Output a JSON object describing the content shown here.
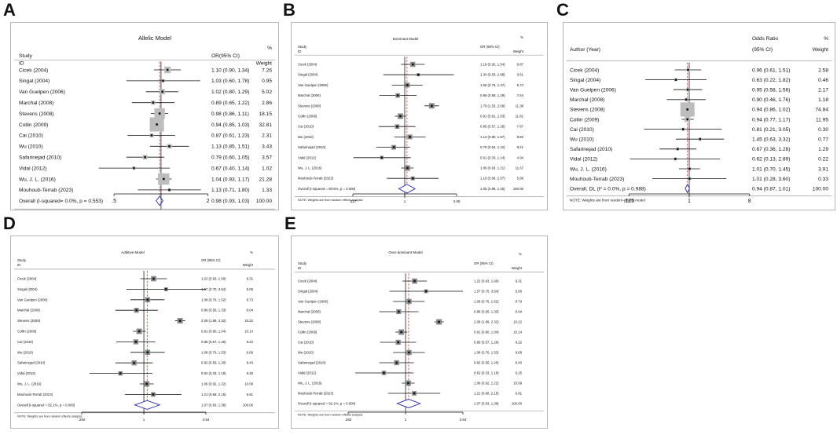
{
  "panels": [
    {
      "letter": "A",
      "chart_data": {
        "type": "forest",
        "model_title": "Allelic Model",
        "header_col1": [
          "Study",
          "ID"
        ],
        "header_col2": "OR(95% CI)",
        "header_col3": [
          "%",
          "Weight"
        ],
        "studies": [
          {
            "name": "Cicek (2004)",
            "or": 1.1,
            "lo": 0.9,
            "hi": 1.34,
            "ci": "1.10 (0.90, 1.34)",
            "weight": 7.26
          },
          {
            "name": "Singal (2004)",
            "or": 1.03,
            "lo": 0.6,
            "hi": 1.78,
            "ci": "1.03 (0.60, 1.78)",
            "weight": 0.95
          },
          {
            "name": "Van Guelpen (2006)",
            "or": 1.02,
            "lo": 0.8,
            "hi": 1.29,
            "ci": "1.02 (0.80, 1.29)",
            "weight": 5.02
          },
          {
            "name": "Marchal (2008)",
            "or": 0.89,
            "lo": 0.65,
            "hi": 1.22,
            "ci": "0.89 (0.65, 1.22)",
            "weight": 2.86
          },
          {
            "name": "Stevens (2008)",
            "or": 0.98,
            "lo": 0.86,
            "hi": 1.11,
            "ci": "0.98 (0.86, 1.11)",
            "weight": 18.15
          },
          {
            "name": "Collin (2009)",
            "or": 0.94,
            "lo": 0.85,
            "hi": 1.03,
            "ci": "0.94 (0.85, 1.03)",
            "weight": 32.81
          },
          {
            "name": "Cai (2010)",
            "or": 0.87,
            "lo": 0.61,
            "hi": 1.23,
            "ci": "0.87 (0.61, 1.23)",
            "weight": 2.31
          },
          {
            "name": "Wu (2010)",
            "or": 1.13,
            "lo": 0.85,
            "hi": 1.51,
            "ci": "1.13 (0.85, 1.51)",
            "weight": 3.43
          },
          {
            "name": "Safarinejad (2010)",
            "or": 0.79,
            "lo": 0.6,
            "hi": 1.05,
            "ci": "0.79 (0.60, 1.05)",
            "weight": 3.57
          },
          {
            "name": "Vidal (2012)",
            "or": 0.67,
            "lo": 0.4,
            "hi": 1.14,
            "ci": "0.67 (0.40, 1.14)",
            "weight": 1.02
          },
          {
            "name": "Wu, J. L. (2016)",
            "or": 1.04,
            "lo": 0.93,
            "hi": 1.17,
            "ci": "1.04 (0.93, 1.17)",
            "weight": 21.28
          },
          {
            "name": "Mouhoub-Terrab (2023)",
            "or": 1.13,
            "lo": 0.71,
            "hi": 1.8,
            "ci": "1.13 (0.71, 1.80)",
            "weight": 1.33
          }
        ],
        "overall": {
          "label": "Overall (I-squared= 0.0%, p = 0.553)",
          "or": 0.98,
          "lo": 0.93,
          "hi": 1.03,
          "ci": "0.98 (0.93, 1.03)",
          "weight": "100.00"
        },
        "note": "NOTE: Weights are from random-effects model",
        "ticks": [
          {
            "v": 0.5,
            "label": ".5"
          },
          {
            "v": 1,
            "label": "1"
          },
          {
            "v": 2,
            "label": "2"
          }
        ],
        "xlim": [
          0.333,
          2.5
        ]
      }
    },
    {
      "letter": "B",
      "chart_data": {
        "type": "forest",
        "model_title": "Dominant Model",
        "header_col1": [
          "Study",
          "ID"
        ],
        "header_col2": "OR (95% CI)",
        "header_col3": [
          "%",
          "Weight"
        ],
        "studies": [
          {
            "name": "Cicek (2004)",
            "or": 1.19,
            "lo": 0.92,
            "hi": 1.54,
            "ci": "1.19 (0.92, 1.54)",
            "weight": 9.87
          },
          {
            "name": "Singal (2004)",
            "or": 1.34,
            "lo": 0.63,
            "hi": 2.88,
            "ci": "1.34 (0.63, 2.88)",
            "weight": 3.61
          },
          {
            "name": "Van Guelpen (2006)",
            "or": 1.06,
            "lo": 0.76,
            "hi": 1.47,
            "ci": "1.06 (0.76, 1.47)",
            "weight": 8.74
          },
          {
            "name": "Marchal (2008)",
            "or": 0.86,
            "lo": 0.58,
            "hi": 1.29,
            "ci": "0.86 (0.58, 1.29)",
            "weight": 7.64
          },
          {
            "name": "Stevens (2008)",
            "or": 1.79,
            "lo": 1.53,
            "hi": 2.09,
            "ci": "1.79 (1.53, 2.09)",
            "weight": 11.38
          },
          {
            "name": "Collin (2009)",
            "or": 0.91,
            "lo": 0.81,
            "hi": 1.03,
            "ci": "0.91 (0.81, 1.03)",
            "weight": 11.81
          },
          {
            "name": "Cai (2010)",
            "or": 0.85,
            "lo": 0.57,
            "hi": 1.26,
            "ci": "0.85 (0.57, 1.26)",
            "weight": 7.67
          },
          {
            "name": "Wu (2010)",
            "or": 1.12,
            "lo": 0.8,
            "hi": 1.57,
            "ci": "1.12 (0.80, 1.57)",
            "weight": 8.6
          },
          {
            "name": "Safarinejad (2010)",
            "or": 0.79,
            "lo": 0.54,
            "hi": 1.12,
            "ci": "0.79 (0.54, 1.12)",
            "weight": 8.21
          },
          {
            "name": "Vidal (2012)",
            "or": 0.61,
            "lo": 0.33,
            "hi": 1.14,
            "ci": "0.61 (0.33, 1.14)",
            "weight": 4.94
          },
          {
            "name": "Wu, J. L. (2016)",
            "or": 1.06,
            "lo": 0.93,
            "hi": 1.21,
            "ci": "1.06 (0.93, 1.21)",
            "weight": 11.67
          },
          {
            "name": "Mouhoub-Terrab (2023)",
            "or": 1.19,
            "lo": 0.68,
            "hi": 2.07,
            "ci": "1.19 (0.68, 2.07)",
            "weight": 5.86
          }
        ],
        "overall": {
          "label": "Overall (I-squared = 80.6%, p = 0.000)",
          "or": 1.05,
          "lo": 0.88,
          "hi": 1.25,
          "ci": "1.05 (0.88, 1.25)",
          "weight": "100.00"
        },
        "note": "NOTE: Weights are from random effects analysis",
        "ticks": [
          {
            "v": 0.327,
            "label": ".327"
          },
          {
            "v": 1,
            "label": "1"
          },
          {
            "v": 3.06,
            "label": "3.06"
          }
        ],
        "xlim": [
          0.327,
          3.06
        ]
      }
    },
    {
      "letter": "C",
      "chart_data": {
        "type": "forest",
        "model_title": "",
        "header_col1": [
          "Author (Year)",
          ""
        ],
        "header_col2_lines": [
          "Odds Ratio",
          "(95% CI)"
        ],
        "header_col3": [
          "%",
          "Weight"
        ],
        "studies": [
          {
            "name": "Cicek (2004)",
            "or": 0.96,
            "lo": 0.61,
            "hi": 1.51,
            "ci": "0.96 (0.61, 1.51)",
            "weight": 2.58
          },
          {
            "name": "Singal (2004)",
            "or": 0.63,
            "lo": 0.22,
            "hi": 1.82,
            "ci": "0.63 (0.22, 1.82)",
            "weight": 0.46
          },
          {
            "name": "Van Guelpen (2006)",
            "or": 0.95,
            "lo": 0.58,
            "hi": 1.56,
            "ci": "0.95 (0.58, 1.56)",
            "weight": 2.17
          },
          {
            "name": "Marchal (2008)",
            "or": 0.9,
            "lo": 0.46,
            "hi": 1.76,
            "ci": "0.90 (0.46, 1.76)",
            "weight": 1.18
          },
          {
            "name": "Stevens (2008)",
            "or": 0.94,
            "lo": 0.86,
            "hi": 1.02,
            "ci": "0.94 (0.86, 1.02)",
            "weight": 74.84
          },
          {
            "name": "Collin (2009)",
            "or": 0.94,
            "lo": 0.77,
            "hi": 1.17,
            "ci": "0.94 (0.77, 1.17)",
            "weight": 11.95
          },
          {
            "name": "Cai (2010)",
            "or": 0.81,
            "lo": 0.21,
            "hi": 3.05,
            "ci": "0.81 (0.21, 3.05)",
            "weight": 0.3
          },
          {
            "name": "Wu (2010)",
            "or": 1.45,
            "lo": 0.63,
            "hi": 3.32,
            "ci": "1.45 (0.63, 3.32)",
            "weight": 0.77
          },
          {
            "name": "Safarinejad (2010)",
            "or": 0.67,
            "lo": 0.36,
            "hi": 1.28,
            "ci": "0.67 (0.36, 1.28)",
            "weight": 1.29
          },
          {
            "name": "Vidal (2012)",
            "or": 0.62,
            "lo": 0.13,
            "hi": 2.89,
            "ci": "0.62 (0.13, 2.89)",
            "weight": 0.22
          },
          {
            "name": "Wu, J. L. (2016)",
            "or": 1.01,
            "lo": 0.7,
            "hi": 1.45,
            "ci": "1.01 (0.70, 1.45)",
            "weight": 3.91
          },
          {
            "name": "Mouhoub-Terrab (2023)",
            "or": 1.01,
            "lo": 0.28,
            "hi": 3.6,
            "ci": "1.01 (0.28, 3.60)",
            "weight": 0.33
          }
        ],
        "overall": {
          "label": "Overall, DL (I² = 0.0%, p = 0.988)",
          "or": 0.94,
          "lo": 0.87,
          "hi": 1.01,
          "ci": "0.94 (0.87, 1.01)",
          "weight": "100.00"
        },
        "note": "NOTE: Weights are from random-effects model",
        "ticks": [
          {
            "v": 0.125,
            "label": ".125"
          },
          {
            "v": 1,
            "label": "1"
          },
          {
            "v": 8,
            "label": "8"
          }
        ],
        "xlim": [
          0.1,
          10
        ]
      }
    },
    {
      "letter": "D",
      "chart_data": {
        "type": "forest",
        "model_title": "Additive Model",
        "header_col1": [
          "Study",
          "ID"
        ],
        "header_col2": "OR (95% CI)",
        "header_col3": [
          "%",
          "Weight"
        ],
        "studies": [
          {
            "name": "Cicek (2004)",
            "or": 1.22,
            "lo": 0.93,
            "hi": 1.6,
            "ci": "1.22 (0.93, 1.60)",
            "weight": 9.31
          },
          {
            "name": "Singal (2004)",
            "or": 1.57,
            "lo": 0.7,
            "hi": 3.54,
            "ci": "1.57 (0.70, 3.54)",
            "weight": 5.06
          },
          {
            "name": "Van Guelpen (2006)",
            "or": 1.08,
            "lo": 0.76,
            "hi": 1.52,
            "ci": "1.08 (0.76, 1.52)",
            "weight": 8.73
          },
          {
            "name": "Marchal (2008)",
            "or": 0.86,
            "lo": 0.56,
            "hi": 1.33,
            "ci": "0.86 (0.56, 1.33)",
            "weight": 8.04
          },
          {
            "name": "Stevens (2008)",
            "or": 2.09,
            "lo": 1.89,
            "hi": 2.32,
            "ci": "2.09 (1.89, 2.32)",
            "weight": 10.22
          },
          {
            "name": "Collin (2009)",
            "or": 0.91,
            "lo": 0.8,
            "hi": 1.04,
            "ci": "0.91 (0.80, 1.04)",
            "weight": 10.14
          },
          {
            "name": "Cai (2010)",
            "or": 0.85,
            "lo": 0.57,
            "hi": 1.26,
            "ci": "0.85 (0.57, 1.26)",
            "weight": 8.22
          },
          {
            "name": "Wu (2010)",
            "or": 1.08,
            "lo": 0.76,
            "hi": 1.53,
            "ci": "1.08 (0.76, 1.53)",
            "weight": 8.69
          },
          {
            "name": "Safarinejad (2010)",
            "or": 0.82,
            "lo": 0.56,
            "hi": 1.2,
            "ci": "0.82 (0.56, 1.20)",
            "weight": 8.43
          },
          {
            "name": "Vidal (2012)",
            "or": 0.62,
            "lo": 0.33,
            "hi": 1.19,
            "ci": "0.62 (0.33, 1.19)",
            "weight": 6.25
          },
          {
            "name": "Wu, J. L. (2016)",
            "or": 1.06,
            "lo": 0.92,
            "hi": 1.22,
            "ci": "1.06 (0.92, 1.22)",
            "weight": 10.09
          },
          {
            "name": "Mouhoub-Terrab (2023)",
            "or": 1.21,
            "lo": 0.68,
            "hi": 2.15,
            "ci": "1.21 (0.68, 2.15)",
            "weight": 6.81
          }
        ],
        "overall": {
          "label": "Overall  (I-squared = 92.1%, p = 0.000)",
          "or": 1.07,
          "lo": 0.83,
          "hi": 1.38,
          "ci": "1.07 (0.83, 1.38)",
          "weight": "100.00"
        },
        "note": "NOTE: Weights are from random effects analysis",
        "ticks": [
          {
            "v": 0.282,
            "label": ".282"
          },
          {
            "v": 1,
            "label": "1"
          },
          {
            "v": 3.54,
            "label": "3.54"
          }
        ],
        "xlim": [
          0.282,
          3.54
        ]
      }
    },
    {
      "letter": "E",
      "chart_data": {
        "type": "forest",
        "model_title": "Over-dominant Model",
        "header_col1": [
          "Study",
          "ID"
        ],
        "header_col2": "OR (95% CI)",
        "header_col3": [
          "%",
          "Weight"
        ],
        "studies": [
          {
            "name": "Cicek (2004)",
            "or": 1.22,
            "lo": 0.93,
            "hi": 1.6,
            "ci": "1.22 (0.93, 1.60)",
            "weight": 9.31
          },
          {
            "name": "Singal (2004)",
            "or": 1.57,
            "lo": 0.7,
            "hi": 3.54,
            "ci": "1.57 (0.70, 3.54)",
            "weight": 5.06
          },
          {
            "name": "Van Guelpen (2006)",
            "or": 1.08,
            "lo": 0.76,
            "hi": 1.52,
            "ci": "1.08 (0.76, 1.52)",
            "weight": 8.73
          },
          {
            "name": "Marchal (2008)",
            "or": 0.86,
            "lo": 0.56,
            "hi": 1.33,
            "ci": "0.86 (0.56, 1.33)",
            "weight": 8.04
          },
          {
            "name": "Stevens (2008)",
            "or": 2.09,
            "lo": 1.89,
            "hi": 2.32,
            "ci": "2.09 (1.89, 2.32)",
            "weight": 10.22
          },
          {
            "name": "Collin (2009)",
            "or": 0.91,
            "lo": 0.8,
            "hi": 1.04,
            "ci": "0.91 (0.80, 1.04)",
            "weight": 10.14
          },
          {
            "name": "Cai (2010)",
            "or": 0.85,
            "lo": 0.57,
            "hi": 1.26,
            "ci": "0.85 (0.57, 1.26)",
            "weight": 8.22
          },
          {
            "name": "Wu (2010)",
            "or": 1.08,
            "lo": 0.76,
            "hi": 1.53,
            "ci": "1.08 (0.76, 1.53)",
            "weight": 8.69
          },
          {
            "name": "Safarinejad (2010)",
            "or": 0.82,
            "lo": 0.56,
            "hi": 1.2,
            "ci": "0.82 (0.56, 1.20)",
            "weight": 8.43
          },
          {
            "name": "Vidal (2012)",
            "or": 0.62,
            "lo": 0.33,
            "hi": 1.19,
            "ci": "0.62 (0.33, 1.19)",
            "weight": 6.25
          },
          {
            "name": "Wu, J. L. (2016)",
            "or": 1.06,
            "lo": 0.92,
            "hi": 1.22,
            "ci": "1.06 (0.92, 1.22)",
            "weight": 10.09
          },
          {
            "name": "Mouhoub-Terrab (2023)",
            "or": 1.21,
            "lo": 0.68,
            "hi": 2.15,
            "ci": "1.21 (0.68, 2.15)",
            "weight": 6.81
          }
        ],
        "overall": {
          "label": "Overall  (I-squared = 92.1%, p = 0.000)",
          "or": 1.07,
          "lo": 0.83,
          "hi": 1.38,
          "ci": "1.07 (0.83, 1.38)",
          "weight": "100.00"
        },
        "note": "NOTE: Weights are from random effects analysis",
        "ticks": [
          {
            "v": 0.282,
            "label": ".282"
          },
          {
            "v": 1,
            "label": "1"
          },
          {
            "v": 3.54,
            "label": "3.54"
          }
        ],
        "xlim": [
          0.282,
          3.54
        ]
      }
    }
  ]
}
